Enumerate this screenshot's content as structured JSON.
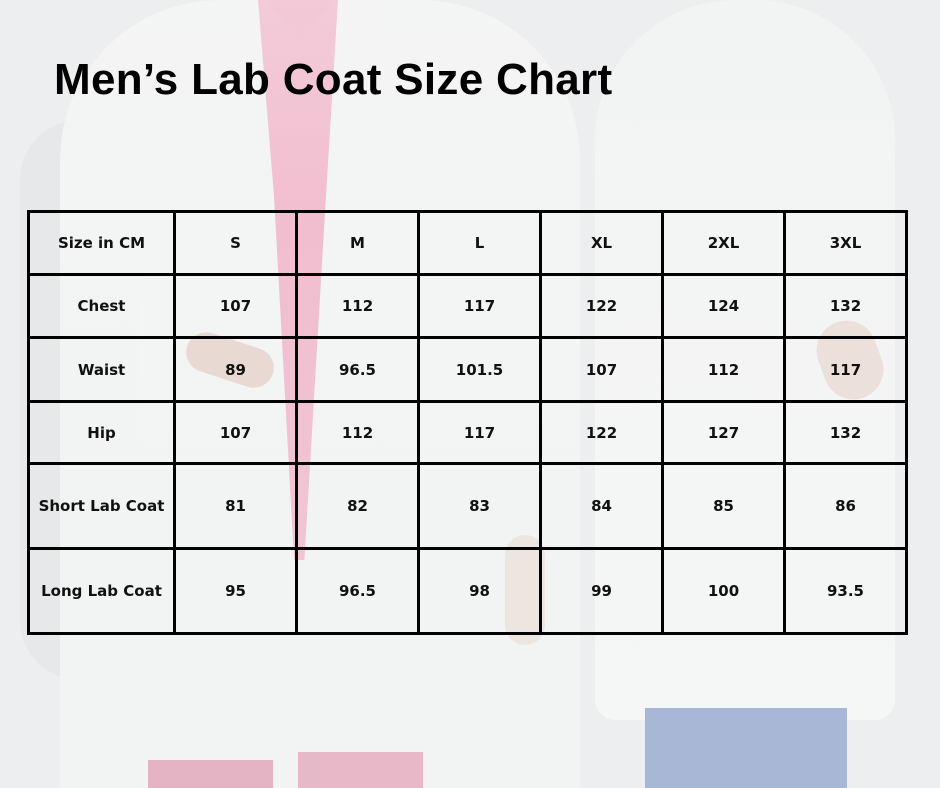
{
  "title": "Men’s Lab Coat Size Chart",
  "table": {
    "corner_label": "Size in CM",
    "sizes": [
      "S",
      "M",
      "L",
      "XL",
      "2XL",
      "3XL"
    ],
    "rows": [
      {
        "label": "Chest",
        "values": [
          "107",
          "112",
          "117",
          "122",
          "124",
          "132"
        ]
      },
      {
        "label": "Waist",
        "values": [
          "89",
          "96.5",
          "101.5",
          "107",
          "112",
          "117"
        ]
      },
      {
        "label": "Hip",
        "values": [
          "107",
          "112",
          "117",
          "122",
          "127",
          "132"
        ]
      },
      {
        "label": "Short Lab Coat",
        "values": [
          "81",
          "82",
          "83",
          "84",
          "85",
          "86"
        ]
      },
      {
        "label": "Long Lab Coat",
        "values": [
          "95",
          "96.5",
          "98",
          "99",
          "100",
          "93.5"
        ]
      }
    ]
  },
  "colors": {
    "background": "#eceeef",
    "border": "#000000",
    "text": "#000000",
    "scrub_pink": "#f1b8cb",
    "pants_blue": "#a9b7d6"
  },
  "chart_data": {
    "type": "table",
    "title": "Men’s Lab Coat Size Chart",
    "unit": "cm",
    "columns": [
      "Size in CM",
      "S",
      "M",
      "L",
      "XL",
      "2XL",
      "3XL"
    ],
    "categories": [
      "S",
      "M",
      "L",
      "XL",
      "2XL",
      "3XL"
    ],
    "series": [
      {
        "name": "Chest",
        "values": [
          107,
          112,
          117,
          122,
          124,
          132
        ]
      },
      {
        "name": "Waist",
        "values": [
          89,
          96.5,
          101.5,
          107,
          112,
          117
        ]
      },
      {
        "name": "Hip",
        "values": [
          107,
          112,
          117,
          122,
          127,
          132
        ]
      },
      {
        "name": "Short Lab Coat",
        "values": [
          81,
          82,
          83,
          84,
          85,
          86
        ]
      },
      {
        "name": "Long Lab Coat",
        "values": [
          95,
          96.5,
          98,
          99,
          100,
          93.5
        ]
      }
    ]
  }
}
